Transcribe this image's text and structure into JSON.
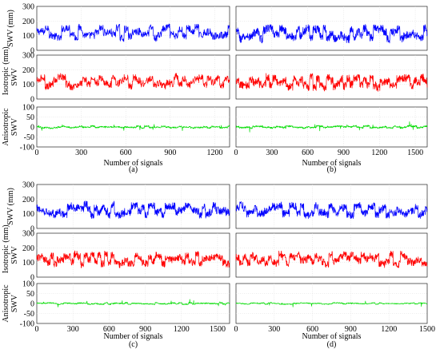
{
  "figure_labels": {
    "ylabel_swv": "SWV (mm)",
    "ylabel_iso_top": "Isotropic",
    "ylabel_iso_unit": "(mm)",
    "ylabel_iso_bottom": "SWV",
    "ylabel_aniso_top": "Anisotropic",
    "ylabel_aniso_bottom": "SWV",
    "xlabel": "Number of signals"
  },
  "colors": {
    "swv": "#0000ff",
    "isotropic": "#ff0000",
    "anisotropic": "#00dd00"
  },
  "chart_data": [
    {
      "type": "line",
      "panel": "a",
      "caption": "(a)",
      "xlabel": "Number of signals",
      "xlim": [
        0,
        1300
      ],
      "xticks": [
        0,
        300,
        600,
        900,
        1200
      ],
      "rows": [
        {
          "name": "SWV",
          "ylabel": "SWV (mm)",
          "ylim": [
            0,
            300
          ],
          "yticks": [
            0,
            100,
            200,
            300
          ],
          "mean": 120,
          "amp": 55,
          "color": "#0000ff"
        },
        {
          "name": "Isotropic SWV",
          "ylabel": "Isotropic SWV (mm)",
          "ylim": [
            0,
            300
          ],
          "yticks": [
            0,
            100,
            200,
            300
          ],
          "mean": 118,
          "amp": 52,
          "color": "#ff0000"
        },
        {
          "name": "Anisotropic SWV",
          "ylabel": "Anisotropic SWV",
          "ylim": [
            -100,
            100
          ],
          "yticks": [
            -100,
            -50,
            0,
            50,
            100
          ],
          "mean": 0,
          "amp": 8,
          "color": "#00dd00"
        }
      ]
    },
    {
      "type": "line",
      "panel": "b",
      "caption": "(b)",
      "xlabel": "Number of signals",
      "xlim": [
        0,
        1600
      ],
      "xticks": [
        0,
        300,
        600,
        900,
        1200,
        1500
      ],
      "rows": [
        {
          "name": "SWV",
          "ylim": [
            0,
            300
          ],
          "mean": 115,
          "amp": 60,
          "color": "#0000ff"
        },
        {
          "name": "Isotropic SWV",
          "ylim": [
            0,
            300
          ],
          "mean": 113,
          "amp": 58,
          "color": "#ff0000"
        },
        {
          "name": "Anisotropic SWV",
          "ylim": [
            -100,
            100
          ],
          "mean": 0,
          "amp": 8,
          "color": "#00dd00"
        }
      ]
    },
    {
      "type": "line",
      "panel": "c",
      "caption": "(c)",
      "xlabel": "Number of signals",
      "xlim": [
        0,
        1600
      ],
      "xticks": [
        0,
        300,
        600,
        900,
        1200,
        1500
      ],
      "rows": [
        {
          "name": "SWV",
          "ylabel": "SWV (mm)",
          "ylim": [
            0,
            300
          ],
          "yticks": [
            0,
            100,
            200,
            300
          ],
          "mean": 125,
          "amp": 55,
          "color": "#0000ff"
        },
        {
          "name": "Isotropic SWV",
          "ylabel": "Isotropic SWV (mm)",
          "ylim": [
            0,
            300
          ],
          "yticks": [
            0,
            100,
            200,
            300
          ],
          "mean": 122,
          "amp": 52,
          "color": "#ff0000"
        },
        {
          "name": "Anisotropic SWV",
          "ylabel": "Anisotropic SWV",
          "ylim": [
            -100,
            100
          ],
          "yticks": [
            -100,
            -50,
            0,
            50,
            100
          ],
          "mean": 0,
          "amp": 6,
          "color": "#00dd00"
        }
      ]
    },
    {
      "type": "line",
      "panel": "d",
      "caption": "(d)",
      "xlabel": "Number of signals",
      "xlim": [
        0,
        1500
      ],
      "xticks": [
        0,
        300,
        600,
        900,
        1200,
        1500
      ],
      "rows": [
        {
          "name": "SWV",
          "ylim": [
            0,
            300
          ],
          "mean": 125,
          "amp": 55,
          "color": "#0000ff"
        },
        {
          "name": "Isotropic SWV",
          "ylim": [
            0,
            300
          ],
          "mean": 122,
          "amp": 52,
          "color": "#ff0000"
        },
        {
          "name": "Anisotropic SWV",
          "ylim": [
            -100,
            100
          ],
          "mean": 0,
          "amp": 5,
          "color": "#00dd00"
        }
      ]
    }
  ]
}
